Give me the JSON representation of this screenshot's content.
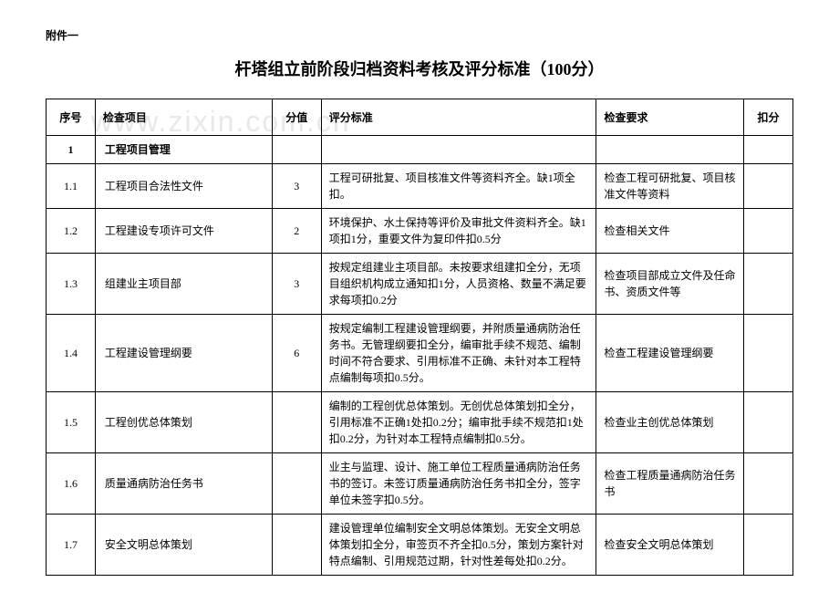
{
  "attachment": "附件一",
  "title": "杆塔组立前阶段归档资料考核及评分标准（100分）",
  "watermark": "www.zixin.com.cn",
  "headers": {
    "index": "序号",
    "item": "检查项目",
    "score": "分值",
    "standard": "评分标准",
    "requirement": "检查要求",
    "deduct": "扣分"
  },
  "section": {
    "index": "1",
    "item": "工程项目管理"
  },
  "rows": [
    {
      "index": "1.1",
      "item": "工程项目合法性文件",
      "score": "3",
      "standard": "工程可研批复、项目核准文件等资料齐全。缺1项全扣。",
      "requirement": "检查工程可研批复、项目核准文件等资料"
    },
    {
      "index": "1.2",
      "item": "工程建设专项许可文件",
      "score": "2",
      "standard": "环境保护、水土保持等评价及审批文件资料齐全。缺1项扣1分，重要文件为复印件扣0.5分",
      "requirement": "检查相关文件"
    },
    {
      "index": "1.3",
      "item": "组建业主项目部",
      "score": "3",
      "standard": "按规定组建业主项目部。未按要求组建扣全分，无项目组织机构成立通知扣1分，人员资格、数量不满足要求每项扣0.2分",
      "requirement": "检查项目部成立文件及任命书、资质文件等"
    },
    {
      "index": "1.4",
      "item": "工程建设管理纲要",
      "score": "6",
      "standard": "按规定编制工程建设管理纲要，并附质量通病防治任务书。无管理纲要扣全分，编审批手续不规范、编制时间不符合要求、引用标准不正确、未针对本工程特点编制每项扣0.5分。",
      "requirement": "检查工程建设管理纲要"
    },
    {
      "index": "1.5",
      "item": "工程创优总体策划",
      "score": "",
      "standard": "编制的工程创优总体策划。无创优总体策划扣全分，引用标准不正确1处扣0.2分；编审批手续不规范扣1处扣0.2分，为针对本工程特点编制扣0.5分。",
      "requirement": "检查业主创优总体策划"
    },
    {
      "index": "1.6",
      "item": "质量通病防治任务书",
      "score": "",
      "standard": "业主与监理、设计、施工单位工程质量通病防治任务书的签订。未签订质量通病防治任务书扣全分，签字单位未签字扣0.5分。",
      "requirement": "检查工程质量通病防治任务书"
    },
    {
      "index": "1.7",
      "item": "安全文明总体策划",
      "score": "",
      "standard": "建设管理单位编制安全文明总体策划。无安全文明总体策划扣全分，审签页不齐全扣0.5分，策划方案针对特点编制、引用规范过期，针对性差每处扣0.2分。",
      "requirement": "检查安全文明总体策划"
    }
  ]
}
